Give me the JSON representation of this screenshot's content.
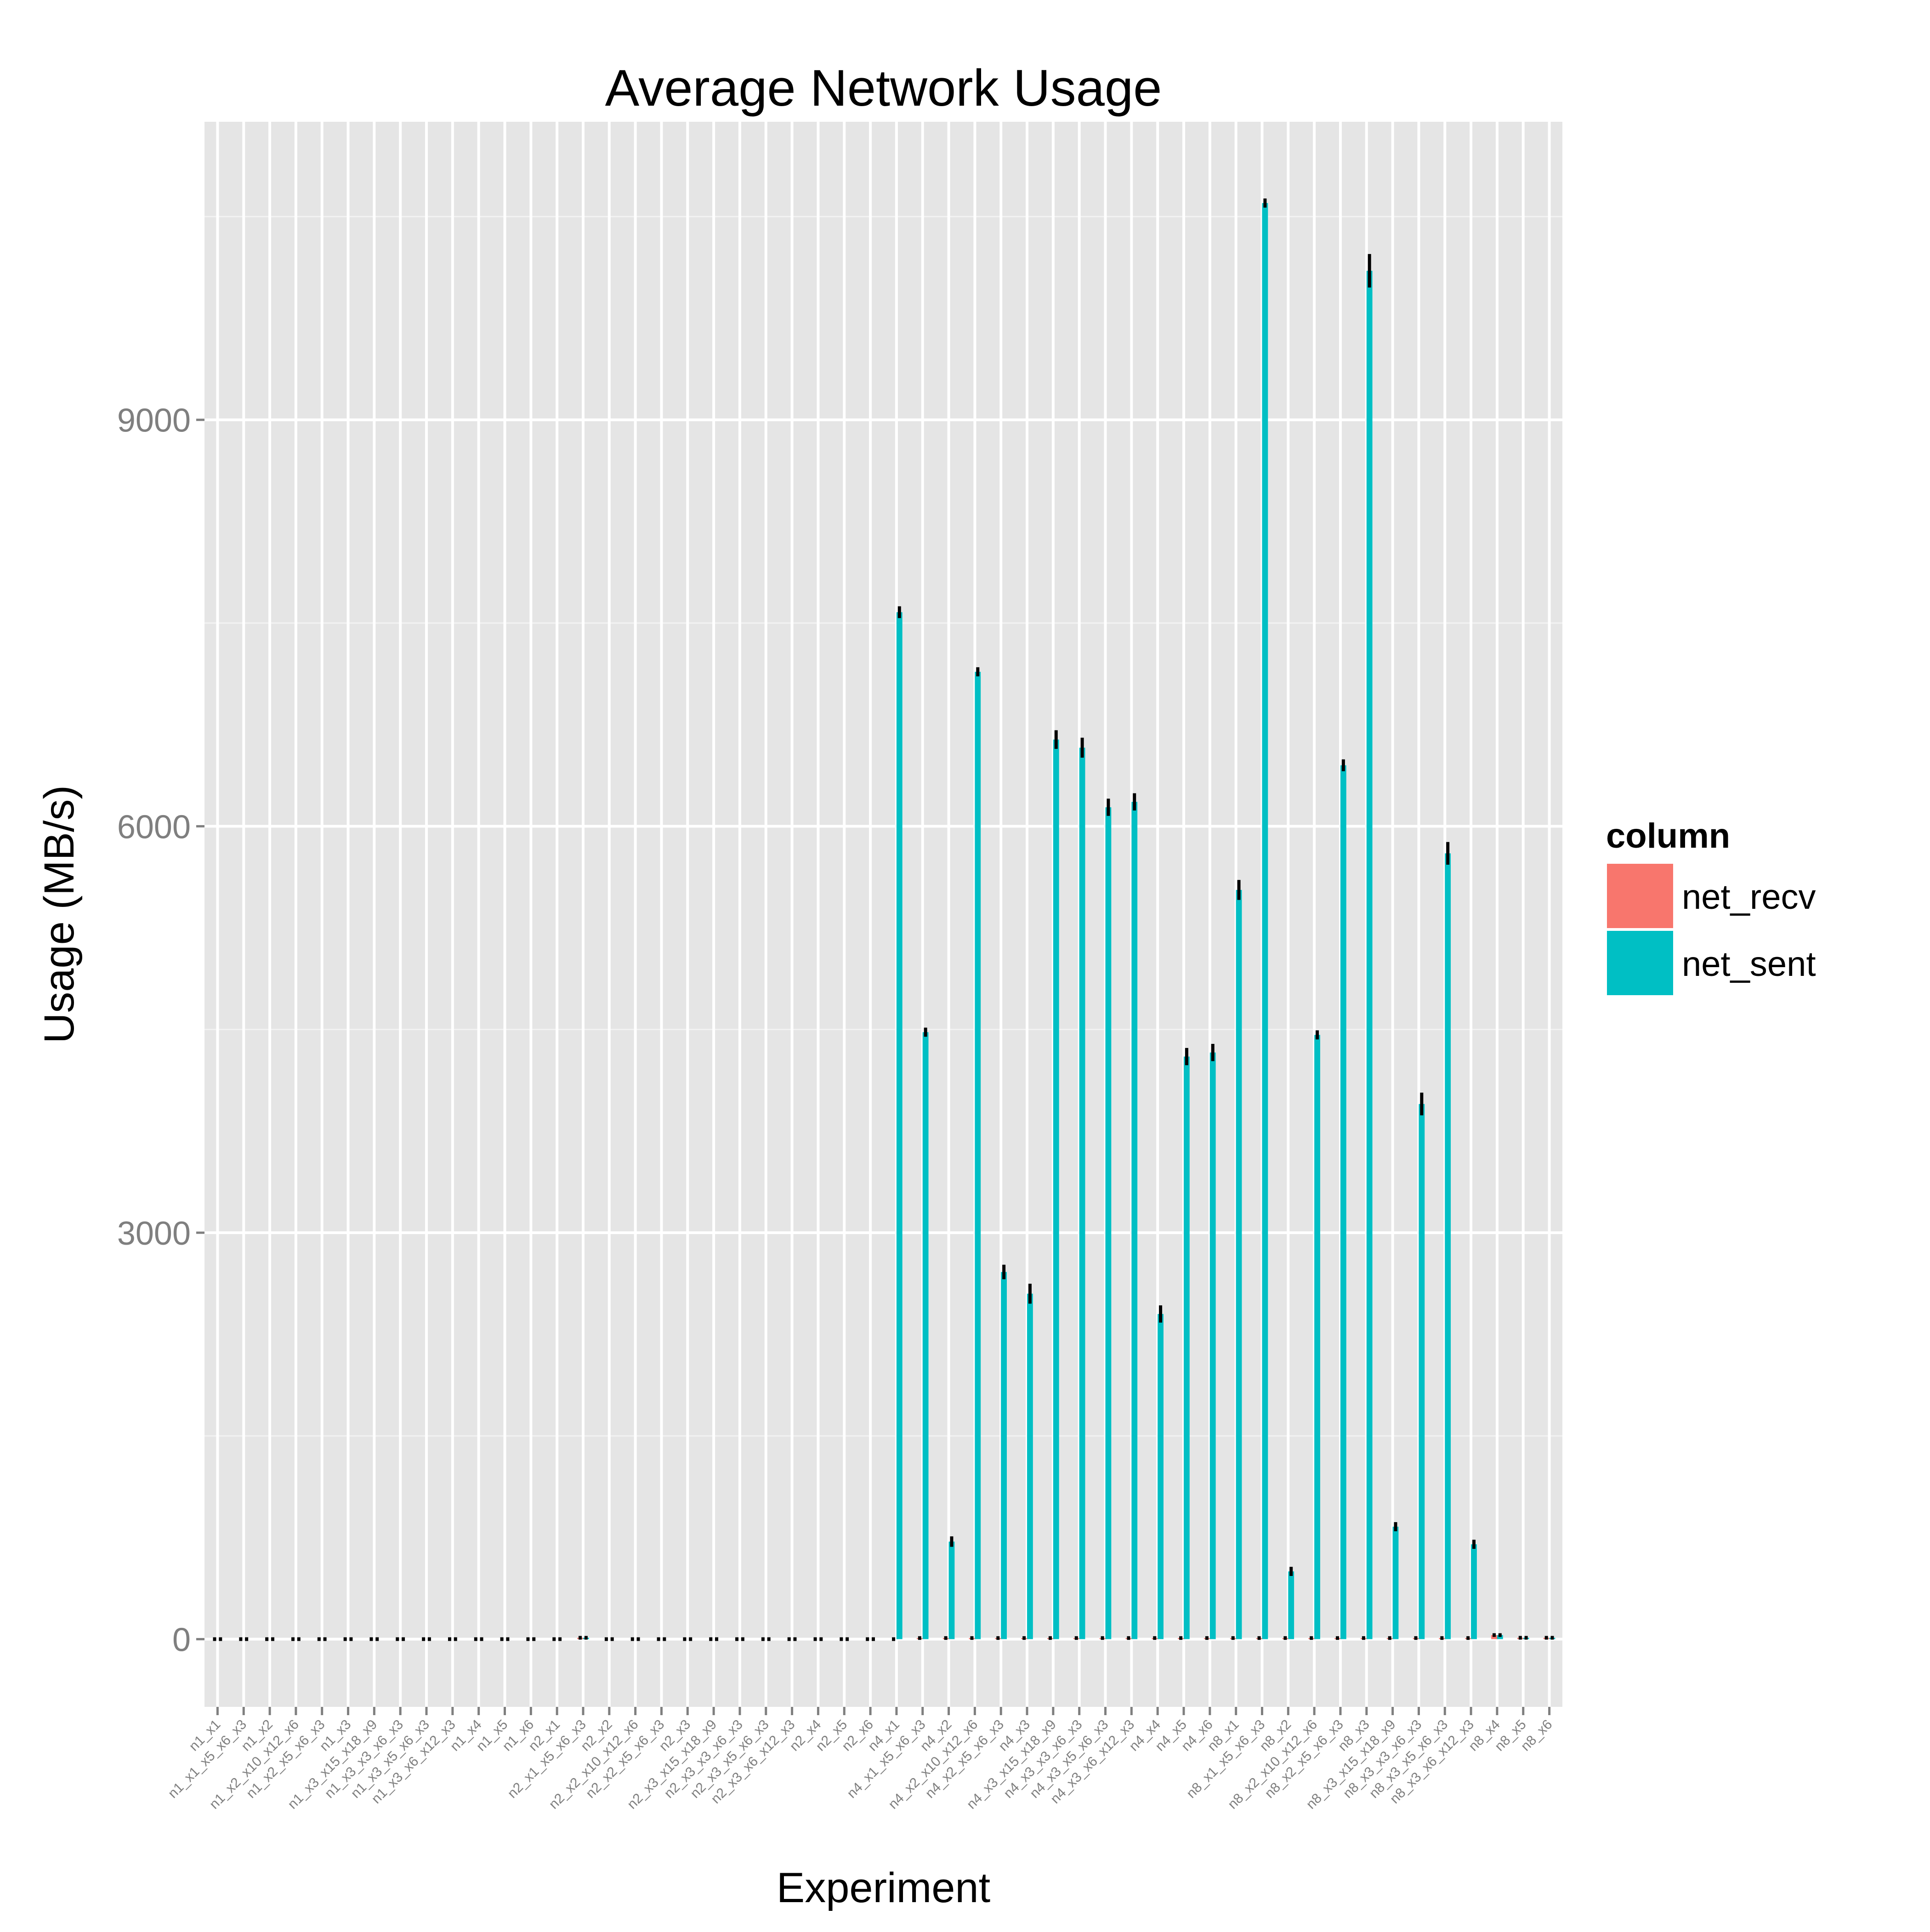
{
  "chart_data": {
    "type": "bar",
    "title": "Average Network Usage",
    "xlabel": "Experiment",
    "ylabel": "Usage (MB/s)",
    "ylim": [
      -500,
      11200
    ],
    "yticks": [
      0,
      3000,
      6000,
      9000
    ],
    "grid": true,
    "legend": {
      "title": "column",
      "position": "right"
    },
    "categories": [
      "n1_x1",
      "n1_x1_x5_x6_x3",
      "n1_x2",
      "n1_x2_x10_x12_x6",
      "n1_x2_x5_x6_x3",
      "n1_x3",
      "n1_x3_x15_x18_x9",
      "n1_x3_x3_x6_x3",
      "n1_x3_x5_x6_x3",
      "n1_x3_x6_x12_x3",
      "n1_x4",
      "n1_x5",
      "n1_x6",
      "n2_x1",
      "n2_x1_x5_x6_x3",
      "n2_x2",
      "n2_x2_x10_x12_x6",
      "n2_x2_x5_x6_x3",
      "n2_x3",
      "n2_x3_x15_x18_x9",
      "n2_x3_x3_x6_x3",
      "n2_x3_x5_x6_x3",
      "n2_x3_x6_x12_x3",
      "n2_x4",
      "n2_x5",
      "n2_x6",
      "n4_x1",
      "n4_x1_x5_x6_x3",
      "n4_x2",
      "n4_x2_x10_x12_x6",
      "n4_x2_x5_x6_x3",
      "n4_x3",
      "n4_x3_x15_x18_x9",
      "n4_x3_x3_x6_x3",
      "n4_x3_x5_x6_x3",
      "n4_x3_x6_x12_x3",
      "n4_x4",
      "n4_x5",
      "n4_x6",
      "n8_x1",
      "n8_x1_x5_x6_x3",
      "n8_x2",
      "n8_x2_x10_x12_x6",
      "n8_x2_x5_x6_x3",
      "n8_x3",
      "n8_x3_x15_x18_x9",
      "n8_x3_x3_x6_x3",
      "n8_x3_x5_x6_x3",
      "n8_x3_x6_x12_x3",
      "n8_x4",
      "n8_x5",
      "n8_x6"
    ],
    "series": [
      {
        "name": "net_recv",
        "color": "#F8766D",
        "values": [
          0,
          0,
          0,
          0,
          0,
          0,
          0,
          0,
          0,
          0,
          0,
          0,
          0,
          0,
          10,
          0,
          0,
          0,
          0,
          0,
          0,
          0,
          0,
          0,
          0,
          0,
          0,
          8,
          8,
          8,
          8,
          8,
          8,
          8,
          8,
          8,
          8,
          8,
          8,
          8,
          8,
          8,
          8,
          8,
          8,
          8,
          8,
          8,
          8,
          30,
          10,
          10
        ]
      },
      {
        "name": "net_sent",
        "color": "#00BFC4",
        "values": [
          0,
          0,
          0,
          0,
          0,
          0,
          0,
          0,
          0,
          0,
          0,
          0,
          0,
          0,
          10,
          0,
          0,
          0,
          0,
          0,
          0,
          0,
          0,
          0,
          0,
          0,
          7580,
          4480,
          720,
          7140,
          2710,
          2550,
          6640,
          6580,
          6140,
          6180,
          2400,
          4300,
          4330,
          5530,
          10600,
          500,
          4460,
          6450,
          10100,
          830,
          3950,
          5800,
          700,
          30,
          10,
          10
        ],
        "errors": [
          0,
          0,
          0,
          0,
          0,
          0,
          0,
          0,
          0,
          0,
          0,
          0,
          0,
          0,
          0,
          0,
          0,
          0,
          0,
          0,
          0,
          0,
          0,
          0,
          0,
          0,
          30,
          20,
          25,
          20,
          40,
          60,
          55,
          60,
          50,
          50,
          50,
          50,
          50,
          60,
          20,
          20,
          20,
          30,
          110,
          20,
          70,
          70,
          20,
          0,
          0,
          0
        ]
      }
    ]
  }
}
